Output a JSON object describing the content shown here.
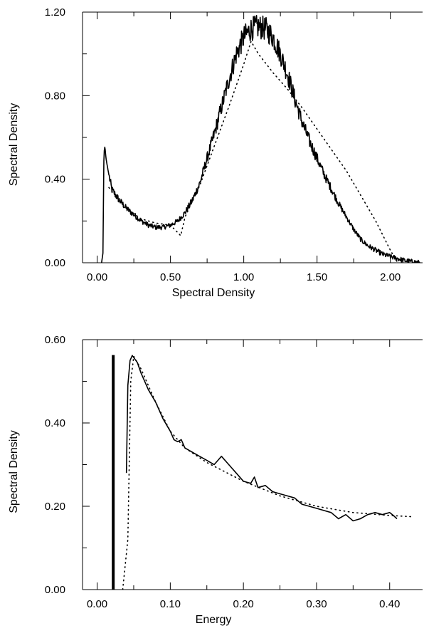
{
  "chart_data": [
    {
      "type": "line",
      "title": "",
      "xlabel": "Spectral Density",
      "ylabel": "Spectral Density",
      "xlim": [
        -0.1,
        2.22
      ],
      "ylim": [
        0,
        1.2
      ],
      "xticks": [
        0,
        0.5,
        1,
        1.5,
        2
      ],
      "xtick_labels": [
        "0.00",
        "0.50",
        "1.00",
        "1.50",
        "2.00"
      ],
      "yticks": [
        0,
        0.4,
        0.8,
        1.2
      ],
      "ytick_labels": [
        "0.00",
        "0.40",
        "0.80",
        "1.20"
      ],
      "grid": false,
      "series": [
        {
          "style": "solid",
          "noisy": true,
          "x": [
            0.03,
            0.04,
            0.045,
            0.05,
            0.055,
            0.06,
            0.08,
            0.1,
            0.15,
            0.2,
            0.25,
            0.3,
            0.35,
            0.4,
            0.45,
            0.5,
            0.55,
            0.6,
            0.65,
            0.7,
            0.75,
            0.8,
            0.85,
            0.9,
            0.95,
            1.0,
            1.05,
            1.1,
            1.15,
            1.2,
            1.25,
            1.3,
            1.35,
            1.4,
            1.45,
            1.5,
            1.55,
            1.6,
            1.65,
            1.7,
            1.75,
            1.8,
            1.85,
            1.9,
            1.95,
            2.0,
            2.05,
            2.1,
            2.15,
            2.2
          ],
          "y": [
            0.0,
            0.05,
            0.48,
            0.56,
            0.54,
            0.5,
            0.42,
            0.35,
            0.3,
            0.26,
            0.23,
            0.2,
            0.18,
            0.17,
            0.17,
            0.18,
            0.2,
            0.24,
            0.3,
            0.38,
            0.5,
            0.62,
            0.75,
            0.88,
            1.0,
            1.08,
            1.12,
            1.13,
            1.12,
            1.08,
            1.0,
            0.9,
            0.78,
            0.67,
            0.58,
            0.5,
            0.42,
            0.35,
            0.28,
            0.22,
            0.16,
            0.11,
            0.08,
            0.06,
            0.04,
            0.03,
            0.02,
            0.01,
            0.005,
            0.0
          ]
        },
        {
          "style": "dotted",
          "x": [
            0.08,
            0.15,
            0.2,
            0.3,
            0.4,
            0.5,
            0.57,
            0.6,
            0.7,
            0.8,
            0.9,
            1.0,
            1.05,
            1.1,
            1.2,
            1.3,
            1.4,
            1.5,
            1.6,
            1.7,
            1.8,
            1.9,
            2.0,
            2.05
          ],
          "y": [
            0.36,
            0.3,
            0.26,
            0.21,
            0.19,
            0.18,
            0.13,
            0.22,
            0.37,
            0.56,
            0.75,
            0.95,
            1.06,
            1.0,
            0.91,
            0.83,
            0.74,
            0.64,
            0.54,
            0.44,
            0.32,
            0.2,
            0.06,
            0.0
          ]
        }
      ]
    },
    {
      "type": "line",
      "title": "",
      "xlabel": "Energy",
      "ylabel": "Spectral Density",
      "xlim": [
        -0.02,
        0.445
      ],
      "ylim": [
        0,
        0.6
      ],
      "xticks": [
        0,
        0.1,
        0.2,
        0.3,
        0.4
      ],
      "xtick_labels": [
        "0.00",
        "0.10",
        "0.20",
        "0.30",
        "0.40"
      ],
      "yticks": [
        0,
        0.2,
        0.4,
        0.6
      ],
      "ytick_labels": [
        "0.00",
        "0.20",
        "0.40",
        "0.60"
      ],
      "grid": false,
      "marker_line": {
        "x": 0.022,
        "y_top": 0.563
      },
      "series": [
        {
          "style": "solid",
          "noisy": false,
          "x": [
            0.04,
            0.042,
            0.045,
            0.048,
            0.055,
            0.06,
            0.07,
            0.08,
            0.09,
            0.1,
            0.105,
            0.11,
            0.115,
            0.12,
            0.13,
            0.14,
            0.15,
            0.16,
            0.165,
            0.17,
            0.18,
            0.19,
            0.2,
            0.21,
            0.215,
            0.22,
            0.23,
            0.24,
            0.25,
            0.26,
            0.27,
            0.28,
            0.29,
            0.3,
            0.31,
            0.32,
            0.33,
            0.34,
            0.35,
            0.36,
            0.37,
            0.38,
            0.39,
            0.4,
            0.405,
            0.41
          ],
          "y": [
            0.28,
            0.49,
            0.55,
            0.562,
            0.545,
            0.52,
            0.48,
            0.45,
            0.41,
            0.38,
            0.36,
            0.355,
            0.36,
            0.34,
            0.33,
            0.32,
            0.31,
            0.3,
            0.31,
            0.32,
            0.3,
            0.28,
            0.26,
            0.255,
            0.27,
            0.245,
            0.25,
            0.235,
            0.23,
            0.225,
            0.22,
            0.205,
            0.2,
            0.195,
            0.19,
            0.185,
            0.17,
            0.18,
            0.165,
            0.17,
            0.18,
            0.185,
            0.18,
            0.185,
            0.178,
            0.17
          ]
        },
        {
          "style": "dotted",
          "x": [
            0.035,
            0.042,
            0.046,
            0.05,
            0.06,
            0.08,
            0.1,
            0.12,
            0.15,
            0.2,
            0.25,
            0.3,
            0.35,
            0.4,
            0.43
          ],
          "y": [
            0.0,
            0.12,
            0.5,
            0.56,
            0.53,
            0.45,
            0.38,
            0.34,
            0.305,
            0.26,
            0.225,
            0.2,
            0.185,
            0.178,
            0.175
          ]
        }
      ]
    }
  ]
}
